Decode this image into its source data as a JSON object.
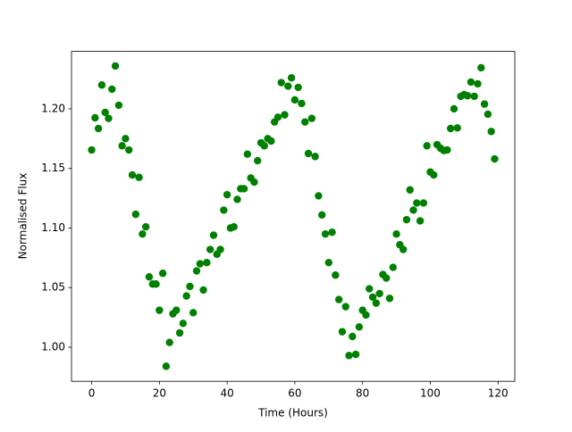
{
  "chart_data": {
    "type": "scatter",
    "x_label": "Time (Hours)",
    "y_label": "Normalised Flux",
    "color": "#008000",
    "x": [
      0,
      1,
      2,
      3,
      4,
      5,
      6,
      7,
      8,
      9,
      10,
      11,
      12,
      13,
      14,
      15,
      16,
      17,
      18,
      19,
      20,
      21,
      22,
      23,
      24,
      25,
      26,
      27,
      28,
      29,
      30,
      31,
      32,
      33,
      34,
      35,
      36,
      37,
      38,
      39,
      40,
      41,
      42,
      43,
      44,
      45,
      46,
      47,
      48,
      49,
      50,
      51,
      52,
      53,
      54,
      55,
      56,
      57,
      58,
      59,
      60,
      61,
      62,
      63,
      64,
      65,
      66,
      67,
      68,
      69,
      70,
      71,
      72,
      73,
      74,
      75,
      76,
      77,
      78,
      79,
      80,
      81,
      82,
      83,
      84,
      85,
      86,
      87,
      88,
      89,
      90,
      91,
      92,
      93,
      94,
      95,
      96,
      97,
      98,
      99,
      100,
      101,
      102,
      103,
      104,
      105,
      106,
      107,
      108,
      109,
      110,
      111,
      112,
      113,
      114,
      115,
      116,
      117,
      118,
      119
    ],
    "values": [
      1.1655,
      1.1925,
      1.1835,
      1.22,
      1.197,
      1.192,
      1.2165,
      1.236,
      1.203,
      1.169,
      1.175,
      1.1655,
      1.1445,
      1.1115,
      1.1425,
      1.095,
      1.101,
      1.059,
      1.053,
      1.053,
      1.031,
      1.062,
      0.984,
      1.004,
      1.028,
      1.031,
      1.012,
      1.02,
      1.043,
      1.051,
      1.029,
      1.064,
      1.07,
      1.048,
      1.071,
      1.082,
      1.094,
      1.078,
      1.082,
      1.115,
      1.128,
      1.1,
      1.101,
      1.124,
      1.133,
      1.133,
      1.162,
      1.142,
      1.1385,
      1.1565,
      1.1715,
      1.169,
      1.175,
      1.173,
      1.189,
      1.193,
      1.222,
      1.195,
      1.219,
      1.226,
      1.2075,
      1.218,
      1.2045,
      1.189,
      1.1625,
      1.192,
      1.16,
      1.127,
      1.111,
      1.095,
      1.071,
      1.0965,
      1.0605,
      1.04,
      1.013,
      1.034,
      0.993,
      1.009,
      0.994,
      1.017,
      1.031,
      1.027,
      1.049,
      1.042,
      1.037,
      1.045,
      1.061,
      1.058,
      1.041,
      1.067,
      1.095,
      1.086,
      1.082,
      1.107,
      1.132,
      1.115,
      1.121,
      1.106,
      1.121,
      1.169,
      1.147,
      1.1445,
      1.17,
      1.167,
      1.165,
      1.1655,
      1.1835,
      1.2,
      1.184,
      1.2105,
      1.212,
      1.211,
      1.2225,
      1.2105,
      1.221,
      1.2345,
      1.204,
      1.1955,
      1.181,
      1.158
    ],
    "xlim": [
      -5.95,
      124.95
    ],
    "xticks": [
      0,
      20,
      40,
      60,
      80,
      100,
      120
    ],
    "ylim": [
      0.9714,
      1.2482
    ],
    "yticks": [
      {
        "value": 1.0,
        "label": "1.00"
      },
      1.05,
      {
        "value": 1.1,
        "label": "1.10"
      },
      1.15,
      {
        "value": 1.2,
        "label": "1.20"
      }
    ],
    "grid": false
  }
}
